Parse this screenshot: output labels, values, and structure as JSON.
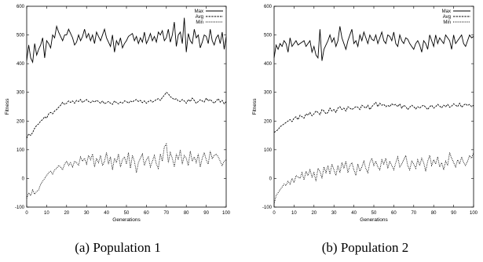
{
  "chart_data": [
    {
      "type": "line",
      "caption": "(a) Population 1",
      "xlabel": "Generations",
      "ylabel": "Fitness",
      "xlim": [
        0,
        100
      ],
      "ylim": [
        -100,
        600
      ],
      "xticks": [
        0,
        10,
        20,
        30,
        40,
        50,
        60,
        70,
        80,
        90,
        100
      ],
      "yticks": [
        -100,
        0,
        100,
        200,
        300,
        400,
        500,
        600
      ],
      "grid": false,
      "legend": "top-right",
      "series": [
        {
          "name": "Max",
          "style": "solid",
          "values": [
            410,
            465,
            420,
            405,
            470,
            430,
            450,
            465,
            490,
            420,
            480,
            470,
            455,
            500,
            490,
            530,
            510,
            495,
            480,
            500,
            500,
            520,
            505,
            490,
            465,
            475,
            500,
            480,
            495,
            520,
            490,
            505,
            480,
            500,
            470,
            510,
            495,
            480,
            500,
            520,
            490,
            475,
            460,
            500,
            440,
            480,
            465,
            490,
            455,
            470,
            480,
            495,
            500,
            505,
            480,
            495,
            470,
            490,
            475,
            510,
            470,
            485,
            505,
            480,
            495,
            475,
            510,
            500,
            515,
            480,
            490,
            520,
            475,
            500,
            545,
            460,
            500,
            510,
            470,
            560,
            440,
            505,
            480,
            470,
            520,
            490,
            500,
            455,
            475,
            500,
            495,
            470,
            520,
            480,
            465,
            490,
            500,
            470,
            510,
            450,
            495
          ]
        },
        {
          "name": "Avg",
          "style": "dashed",
          "values": [
            140,
            155,
            150,
            160,
            175,
            185,
            190,
            200,
            205,
            215,
            210,
            225,
            230,
            225,
            235,
            240,
            248,
            255,
            265,
            258,
            262,
            270,
            265,
            270,
            262,
            272,
            268,
            275,
            265,
            270,
            275,
            268,
            264,
            270,
            266,
            272,
            268,
            262,
            270,
            260,
            264,
            268,
            262,
            258,
            270,
            264,
            260,
            266,
            262,
            270,
            268,
            262,
            270,
            266,
            272,
            275,
            268,
            272,
            264,
            270,
            262,
            268,
            272,
            266,
            270,
            275,
            278,
            272,
            282,
            290,
            300,
            295,
            285,
            280,
            275,
            278,
            270,
            268,
            275,
            270,
            262,
            275,
            268,
            280,
            272,
            262,
            268,
            274,
            270,
            266,
            280,
            270,
            275,
            268,
            262,
            270,
            278,
            266,
            272,
            260,
            268
          ]
        },
        {
          "name": "Min",
          "style": "dotted",
          "values": [
            -70,
            -50,
            -60,
            -40,
            -55,
            -45,
            -40,
            -20,
            -10,
            0,
            10,
            20,
            25,
            15,
            30,
            35,
            45,
            40,
            30,
            50,
            60,
            45,
            55,
            40,
            60,
            55,
            45,
            75,
            60,
            70,
            50,
            80,
            65,
            85,
            40,
            70,
            55,
            80,
            45,
            60,
            90,
            50,
            75,
            30,
            70,
            55,
            85,
            40,
            65,
            75,
            50,
            90,
            35,
            80,
            60,
            20,
            55,
            70,
            85,
            45,
            65,
            75,
            40,
            60,
            80,
            50,
            35,
            85,
            60,
            110,
            120,
            55,
            90,
            70,
            40,
            85,
            65,
            100,
            50,
            80,
            70,
            45,
            95,
            60,
            75,
            55,
            85,
            40,
            70,
            90,
            65,
            50,
            95,
            70,
            80,
            85,
            75,
            60,
            45,
            60,
            65
          ]
        }
      ]
    },
    {
      "type": "line",
      "caption": "(b) Population 2",
      "xlabel": "Generations",
      "ylabel": "Fitness",
      "xlim": [
        0,
        100
      ],
      "ylim": [
        -100,
        600
      ],
      "xticks": [
        0,
        10,
        20,
        30,
        40,
        50,
        60,
        70,
        80,
        90,
        100
      ],
      "yticks": [
        -100,
        0,
        100,
        200,
        300,
        400,
        500,
        600
      ],
      "grid": false,
      "legend": "top-right",
      "series": [
        {
          "name": "Max",
          "style": "solid",
          "values": [
            420,
            465,
            450,
            470,
            460,
            480,
            470,
            440,
            490,
            460,
            470,
            480,
            465,
            470,
            475,
            480,
            460,
            470,
            480,
            440,
            460,
            430,
            420,
            520,
            410,
            450,
            465,
            480,
            500,
            475,
            490,
            460,
            480,
            530,
            490,
            470,
            450,
            480,
            500,
            520,
            470,
            480,
            460,
            500,
            480,
            510,
            490,
            470,
            500,
            485,
            480,
            500,
            470,
            490,
            510,
            480,
            470,
            500,
            495,
            480,
            510,
            470,
            460,
            500,
            480,
            470,
            490,
            485,
            470,
            460,
            450,
            470,
            480,
            465,
            440,
            480,
            470,
            450,
            500,
            480,
            460,
            500,
            470,
            490,
            480,
            470,
            500,
            490,
            480,
            450,
            500,
            470,
            480,
            490,
            500,
            470,
            460,
            480,
            500,
            490,
            495
          ]
        },
        {
          "name": "Avg",
          "style": "dashed",
          "values": [
            160,
            165,
            170,
            180,
            185,
            190,
            195,
            200,
            205,
            198,
            210,
            215,
            205,
            220,
            215,
            210,
            225,
            220,
            230,
            218,
            225,
            235,
            230,
            222,
            240,
            235,
            225,
            230,
            245,
            235,
            240,
            230,
            245,
            250,
            240,
            245,
            235,
            250,
            245,
            240,
            245,
            250,
            248,
            240,
            255,
            250,
            245,
            255,
            240,
            250,
            258,
            265,
            250,
            262,
            255,
            258,
            250,
            255,
            250,
            260,
            255,
            258,
            250,
            260,
            245,
            255,
            250,
            240,
            248,
            255,
            250,
            242,
            250,
            245,
            252,
            255,
            248,
            240,
            250,
            255,
            245,
            250,
            258,
            252,
            246,
            255,
            250,
            258,
            248,
            252,
            260,
            255,
            250,
            262,
            248,
            255,
            260,
            254,
            258,
            250,
            255
          ]
        },
        {
          "name": "Min",
          "style": "dotted",
          "values": [
            -90,
            -60,
            -50,
            -40,
            -30,
            -20,
            -25,
            -10,
            -20,
            0,
            -15,
            10,
            5,
            0,
            20,
            -5,
            25,
            10,
            30,
            5,
            20,
            -10,
            35,
            25,
            0,
            40,
            20,
            45,
            15,
            50,
            30,
            10,
            45,
            20,
            55,
            35,
            60,
            20,
            45,
            55,
            30,
            10,
            50,
            25,
            40,
            60,
            35,
            20,
            55,
            70,
            45,
            60,
            40,
            30,
            65,
            50,
            70,
            35,
            60,
            45,
            30,
            55,
            75,
            40,
            50,
            65,
            80,
            45,
            30,
            60,
            50,
            35,
            65,
            45,
            70,
            55,
            25,
            60,
            80,
            45,
            65,
            50,
            75,
            40,
            55,
            30,
            60,
            45,
            90,
            70,
            55,
            40,
            65,
            50,
            75,
            55,
            45,
            60,
            80,
            70,
            90
          ]
        }
      ]
    }
  ]
}
